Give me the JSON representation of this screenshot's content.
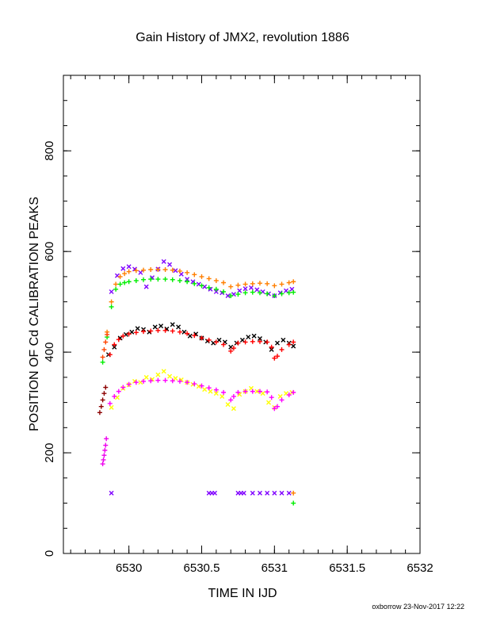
{
  "chart_data": {
    "type": "scatter",
    "title": "Gain History of JMX2, revolution 1886",
    "xlabel": "TIME IN IJD",
    "ylabel": "POSITION OF Cd CALIBRATION PEAKS",
    "xlim": [
      6529.55,
      6532
    ],
    "ylim": [
      0,
      950
    ],
    "xticks": [
      {
        "value": 6530,
        "label": "6530"
      },
      {
        "value": 6530.5,
        "label": "6530.5"
      },
      {
        "value": 6531,
        "label": "6531"
      },
      {
        "value": 6531.5,
        "label": "6531.5"
      },
      {
        "value": 6532,
        "label": "6532"
      }
    ],
    "yticks": [
      {
        "value": 0,
        "label": "0"
      },
      {
        "value": 200,
        "label": "200"
      },
      {
        "value": 400,
        "label": "400"
      },
      {
        "value": 600,
        "label": "600"
      },
      {
        "value": 800,
        "label": "800"
      }
    ],
    "grid": false,
    "legend": "none",
    "footer": "oxborrow 23-Nov-2017 12:22",
    "series": [
      {
        "color": "#7f00ff",
        "marker": "x",
        "x": [
          6529.88,
          6529.92,
          6529.96,
          6530.0,
          6530.04,
          6530.08,
          6530.12,
          6530.16,
          6530.2,
          6530.24,
          6530.28,
          6530.32,
          6530.36,
          6530.4,
          6530.44,
          6530.48,
          6530.52,
          6530.56,
          6530.6,
          6530.64,
          6530.68,
          6530.72,
          6530.76,
          6530.8,
          6530.84,
          6530.88,
          6530.92,
          6530.96,
          6531.0,
          6531.04,
          6531.08,
          6531.12
        ],
        "y": [
          520,
          552,
          566,
          570,
          565,
          558,
          530,
          548,
          565,
          580,
          574,
          562,
          555,
          545,
          540,
          535,
          530,
          525,
          520,
          518,
          512,
          515,
          522,
          526,
          528,
          524,
          520,
          516,
          512,
          518,
          522,
          525
        ]
      },
      {
        "color": "#ff7f00",
        "marker": "+",
        "x": [
          6529.85,
          6529.88,
          6529.91,
          6529.94,
          6529.97,
          6530.0,
          6530.05,
          6530.1,
          6530.15,
          6530.2,
          6530.25,
          6530.3,
          6530.35,
          6530.4,
          6530.45,
          6530.5,
          6530.55,
          6530.6,
          6530.65,
          6530.7,
          6530.75,
          6530.8,
          6530.85,
          6530.9,
          6530.95,
          6531.0,
          6531.05,
          6531.1,
          6531.13
        ],
        "y": [
          440,
          500,
          535,
          550,
          556,
          560,
          562,
          563,
          564,
          564,
          564,
          563,
          561,
          558,
          554,
          550,
          546,
          542,
          538,
          530,
          533,
          535,
          536,
          537,
          536,
          532,
          535,
          538,
          540
        ]
      },
      {
        "color": "#00ee00",
        "marker": "+",
        "x": [
          6529.82,
          6529.85,
          6529.88,
          6529.91,
          6529.94,
          6529.97,
          6530.0,
          6530.05,
          6530.1,
          6530.15,
          6530.2,
          6530.25,
          6530.3,
          6530.35,
          6530.4,
          6530.45,
          6530.5,
          6530.55,
          6530.6,
          6530.65,
          6530.7,
          6530.75,
          6530.8,
          6530.85,
          6530.9,
          6530.95,
          6531.0,
          6531.05,
          6531.1,
          6531.13
        ],
        "y": [
          380,
          430,
          490,
          525,
          535,
          538,
          540,
          542,
          544,
          545,
          545,
          545,
          544,
          542,
          540,
          536,
          532,
          528,
          525,
          520,
          512,
          515,
          518,
          519,
          518,
          516,
          512,
          516,
          518,
          519
        ]
      },
      {
        "color": "#000000",
        "marker": "x",
        "x": [
          6529.86,
          6529.9,
          6529.94,
          6529.98,
          6530.02,
          6530.06,
          6530.1,
          6530.14,
          6530.18,
          6530.22,
          6530.26,
          6530.3,
          6530.34,
          6530.38,
          6530.42,
          6530.46,
          6530.5,
          6530.54,
          6530.58,
          6530.62,
          6530.66,
          6530.7,
          6530.74,
          6530.78,
          6530.82,
          6530.86,
          6530.9,
          6530.94,
          6530.98,
          6531.02,
          6531.06,
          6531.1,
          6531.13
        ],
        "y": [
          395,
          410,
          428,
          435,
          440,
          447,
          445,
          440,
          450,
          452,
          446,
          455,
          450,
          440,
          432,
          436,
          428,
          422,
          418,
          424,
          420,
          410,
          418,
          424,
          430,
          432,
          427,
          420,
          405,
          418,
          424,
          418,
          412
        ]
      },
      {
        "color": "#ff0000",
        "marker": "+",
        "x": [
          6529.87,
          6529.9,
          6529.93,
          6529.96,
          6530.0,
          6530.05,
          6530.1,
          6530.15,
          6530.2,
          6530.25,
          6530.3,
          6530.35,
          6530.4,
          6530.45,
          6530.5,
          6530.55,
          6530.6,
          6530.65,
          6530.7,
          6530.72,
          6530.75,
          6530.8,
          6530.85,
          6530.9,
          6530.95,
          6530.98,
          6531.0,
          6531.02,
          6531.05,
          6531.1,
          6531.13
        ],
        "y": [
          395,
          415,
          425,
          432,
          436,
          439,
          441,
          442,
          443,
          443,
          442,
          440,
          437,
          433,
          428,
          424,
          420,
          415,
          402,
          408,
          418,
          420,
          421,
          421,
          420,
          410,
          388,
          392,
          405,
          415,
          420
        ]
      },
      {
        "color": "#8b0000",
        "marker": "+",
        "x": [
          6529.8,
          6529.81,
          6529.82,
          6529.83,
          6529.84
        ],
        "y": [
          280,
          292,
          305,
          318,
          330
        ]
      },
      {
        "color": "#ffff00",
        "marker": "x",
        "x": [
          6529.88,
          6529.92,
          6529.96,
          6530.0,
          6530.04,
          6530.08,
          6530.12,
          6530.16,
          6530.2,
          6530.24,
          6530.28,
          6530.32,
          6530.36,
          6530.4,
          6530.44,
          6530.48,
          6530.52,
          6530.56,
          6530.6,
          6530.64,
          6530.68,
          6530.72,
          6530.76,
          6530.8,
          6530.84,
          6530.88,
          6530.92,
          6530.96,
          6531.0,
          6531.04,
          6531.08,
          6531.12
        ],
        "y": [
          290,
          310,
          328,
          335,
          342,
          340,
          350,
          346,
          355,
          362,
          352,
          348,
          345,
          340,
          336,
          332,
          326,
          322,
          318,
          312,
          296,
          288,
          316,
          322,
          328,
          322,
          318,
          300,
          290,
          312,
          318,
          320
        ]
      },
      {
        "color": "#ff00ff",
        "marker": "+",
        "x": [
          6529.87,
          6529.9,
          6529.93,
          6529.96,
          6530.0,
          6530.05,
          6530.1,
          6530.15,
          6530.2,
          6530.25,
          6530.3,
          6530.35,
          6530.4,
          6530.45,
          6530.5,
          6530.55,
          6530.6,
          6530.65,
          6530.7,
          6530.72,
          6530.75,
          6530.8,
          6530.85,
          6530.9,
          6530.95,
          6530.98,
          6531.0,
          6531.02,
          6531.05,
          6531.1,
          6531.13
        ],
        "y": [
          298,
          312,
          322,
          330,
          336,
          340,
          342,
          343,
          344,
          344,
          343,
          342,
          340,
          337,
          333,
          329,
          325,
          320,
          305,
          312,
          320,
          322,
          322,
          322,
          321,
          310,
          288,
          292,
          305,
          315,
          320
        ]
      },
      {
        "color": "#ee00ee",
        "marker": "+",
        "x": [
          6529.82,
          6529.825,
          6529.83,
          6529.835,
          6529.84,
          6529.845
        ],
        "y": [
          178,
          186,
          195,
          205,
          215,
          228
        ]
      },
      {
        "color": "#ff4400",
        "marker": "+",
        "x": [
          6529.82,
          6529.83,
          6529.84,
          6529.85
        ],
        "y": [
          390,
          405,
          420,
          435
        ]
      },
      {
        "color": "#7f00ff",
        "marker": "x",
        "x": [
          6529.88,
          6530.55,
          6530.57,
          6530.59,
          6530.75,
          6530.77,
          6530.79,
          6530.85,
          6530.9,
          6530.95,
          6531.0,
          6531.05,
          6531.1
        ],
        "y": [
          120,
          120,
          120,
          120,
          120,
          120,
          120,
          120,
          120,
          120,
          120,
          120,
          120
        ]
      },
      {
        "color": "#ff7f00",
        "marker": "+",
        "x": [
          6531.13
        ],
        "y": [
          120
        ]
      },
      {
        "color": "#00ee00",
        "marker": "+",
        "x": [
          6531.13
        ],
        "y": [
          100
        ]
      }
    ]
  }
}
